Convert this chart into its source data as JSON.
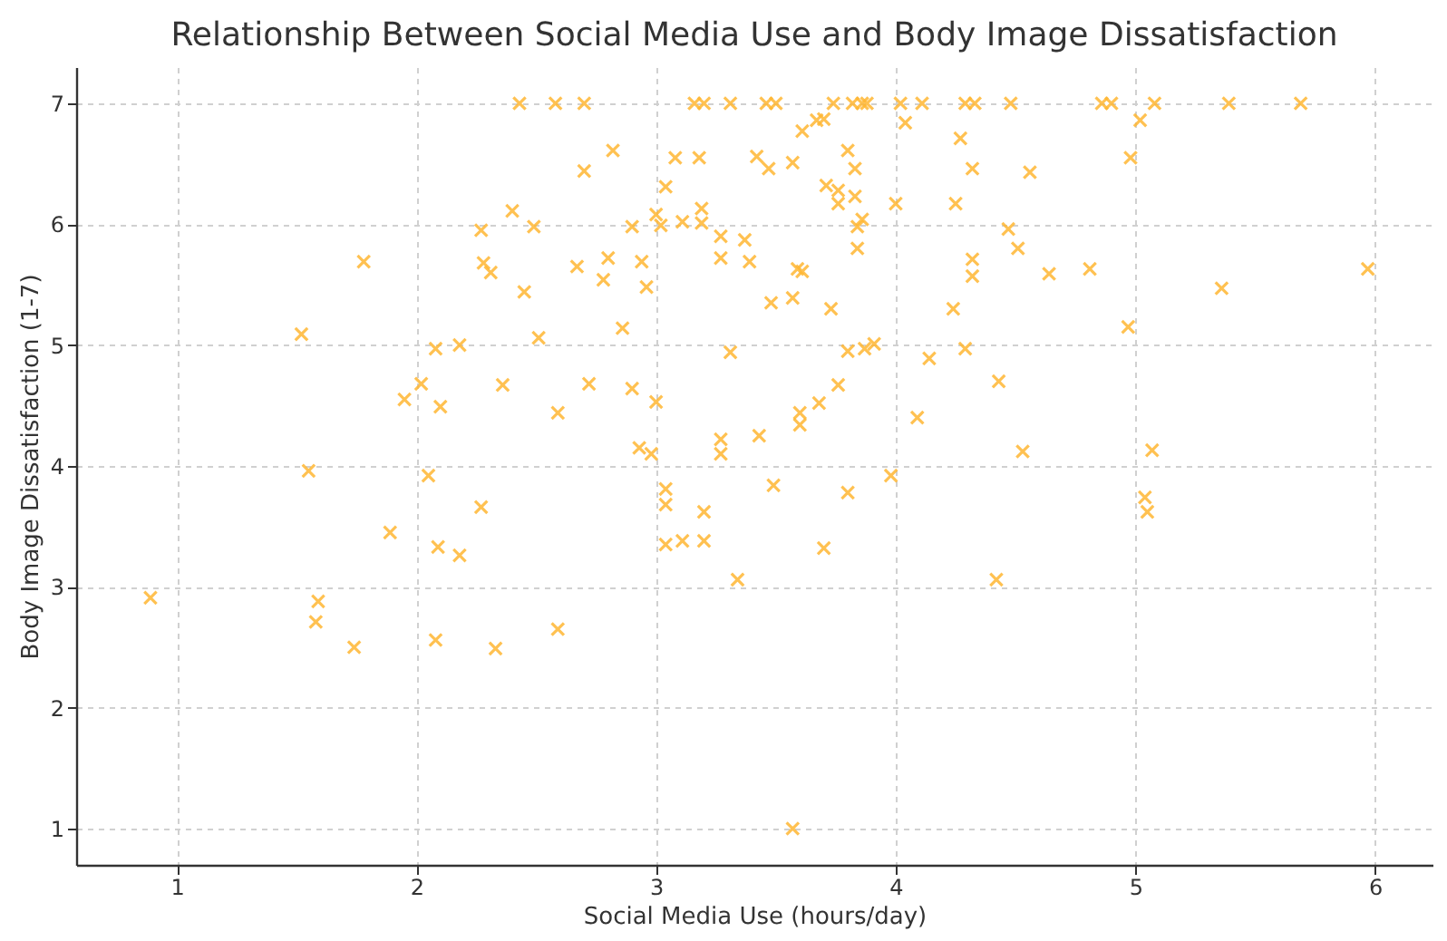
{
  "chart_data": {
    "type": "scatter",
    "title": "Relationship Between Social Media Use and Body Image Dissatisfaction",
    "xlabel": "Social Media Use (hours/day)",
    "ylabel": "Body Image Dissatisfaction (1-7)",
    "xlim": [
      0.58,
      6.24
    ],
    "ylim": [
      0.7,
      7.3
    ],
    "xticks": [
      1,
      2,
      3,
      4,
      5,
      6
    ],
    "yticks": [
      1,
      2,
      3,
      4,
      5,
      6,
      7
    ],
    "grid": true,
    "marker": "cross",
    "series": [
      {
        "color": "#ffb733",
        "x": [
          2.43,
          2.58,
          2.7,
          3.16,
          3.2,
          3.31,
          3.46,
          3.5,
          3.74,
          3.82,
          3.86,
          3.88,
          4.02,
          4.11,
          4.29,
          4.33,
          4.48,
          4.86,
          4.9,
          5.08,
          5.39,
          5.69,
          2.4,
          2.49,
          2.27,
          1.78,
          2.28,
          2.31,
          2.45,
          1.52,
          2.51,
          2.08,
          2.18,
          2.02,
          1.95,
          2.1,
          2.36,
          1.55,
          2.05,
          2.27,
          1.89,
          2.09,
          2.18,
          0.89,
          1.59,
          1.58,
          1.74,
          2.08,
          2.33,
          2.82,
          2.7,
          3.08,
          3.18,
          3.42,
          3.47,
          3.57,
          3.61,
          3.67,
          3.7,
          3.8,
          3.83,
          4.04,
          4.27,
          4.32,
          3.04,
          3.71,
          3.76,
          3.76,
          3.83,
          4.0,
          4.25,
          2.9,
          3.0,
          3.02,
          3.11,
          3.19,
          3.19,
          3.84,
          3.86,
          3.84,
          3.27,
          3.37,
          3.27,
          3.39,
          2.8,
          2.67,
          2.94,
          2.78,
          2.96,
          3.59,
          3.61,
          3.48,
          3.57,
          3.73,
          2.86,
          3.31,
          3.8,
          3.87,
          3.91,
          4.14,
          4.29,
          4.24,
          4.32,
          4.32,
          2.72,
          2.59,
          2.9,
          3.0,
          3.43,
          3.6,
          3.6,
          3.68,
          3.76,
          4.09,
          2.93,
          2.98,
          3.27,
          3.27,
          3.04,
          3.04,
          3.2,
          3.04,
          3.11,
          3.2,
          3.34,
          3.49,
          3.8,
          3.98,
          3.7,
          2.59,
          3.57,
          5.02,
          4.98,
          4.56,
          4.47,
          4.51,
          4.64,
          4.81,
          5.36,
          5.97,
          4.97,
          4.43,
          4.53,
          5.07,
          5.04,
          5.05,
          4.42
        ],
        "values": [
          7,
          7,
          7,
          7,
          7,
          7,
          7,
          7,
          7,
          7,
          7,
          7,
          7,
          7,
          7,
          7,
          7,
          7,
          7,
          7,
          7,
          7,
          6.11,
          5.98,
          5.95,
          5.69,
          5.68,
          5.6,
          5.44,
          5.09,
          5.06,
          4.97,
          5.0,
          4.68,
          4.55,
          4.49,
          4.67,
          3.96,
          3.92,
          3.66,
          3.45,
          3.33,
          3.26,
          2.91,
          2.88,
          2.71,
          2.5,
          2.56,
          2.49,
          6.61,
          6.44,
          6.55,
          6.55,
          6.56,
          6.46,
          6.51,
          6.77,
          6.86,
          6.87,
          6.61,
          6.46,
          6.84,
          6.71,
          6.46,
          6.31,
          6.32,
          6.28,
          6.17,
          6.23,
          6.17,
          6.17,
          5.98,
          6.08,
          5.99,
          6.02,
          6.13,
          6.01,
          5.98,
          6.04,
          5.8,
          5.9,
          5.87,
          5.72,
          5.69,
          5.72,
          5.65,
          5.69,
          5.54,
          5.48,
          5.63,
          5.61,
          5.35,
          5.39,
          5.3,
          5.14,
          4.94,
          4.95,
          4.97,
          5.01,
          4.89,
          4.97,
          5.3,
          5.71,
          5.57,
          4.68,
          4.44,
          4.64,
          4.53,
          4.25,
          4.44,
          4.34,
          4.52,
          4.67,
          4.4,
          4.15,
          4.1,
          4.22,
          4.1,
          3.81,
          3.68,
          3.62,
          3.35,
          3.38,
          3.38,
          3.06,
          3.84,
          3.78,
          3.92,
          3.32,
          2.65,
          1.0,
          6.86,
          6.55,
          6.43,
          5.96,
          5.8,
          5.59,
          5.63,
          5.47,
          5.63,
          5.15,
          4.7,
          4.12,
          4.13,
          3.74,
          3.62,
          3.06
        ]
      }
    ]
  }
}
